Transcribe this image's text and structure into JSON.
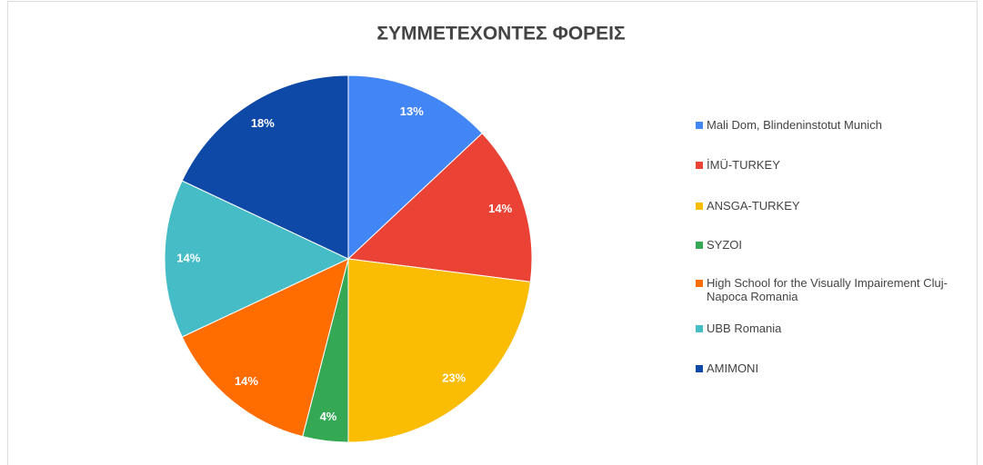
{
  "chart_data": {
    "type": "pie",
    "title": "ΣΥΜΜΕΤΕΧΟΝΤΕΣ ΦΟΡΕΙΣ",
    "categories": [
      "Mali Dom, Blindeninstotut Munich",
      "İMÜ-TURKEY",
      "ANSGA-TURKEY",
      "SYZOI",
      "High School for the Visually Impairement Cluj-Napoca Romania",
      "UBB Romania",
      "AMIMONI"
    ],
    "values": [
      13,
      14,
      23,
      4,
      14,
      14,
      18
    ],
    "value_labels": [
      "13%",
      "14%",
      "23%",
      "4%",
      "14%",
      "14%",
      "18%"
    ],
    "colors": [
      "#4285f4",
      "#ea4335",
      "#fbbc04",
      "#34a853",
      "#ff6d01",
      "#46bdc6",
      "#0f49a8"
    ],
    "legend": "right"
  }
}
